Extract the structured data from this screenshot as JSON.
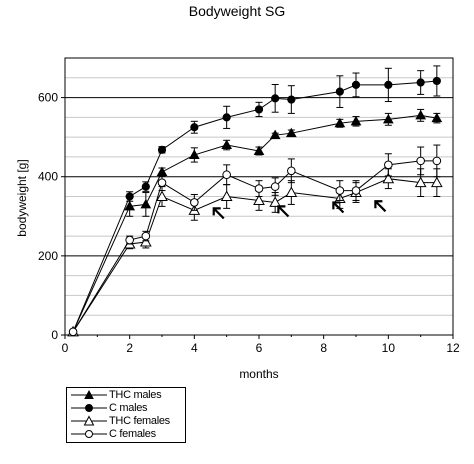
{
  "chart_data": {
    "type": "line",
    "title": "Bodyweight  SG",
    "xlabel": "months",
    "ylabel": "bodyweight [g]",
    "xlim": [
      0,
      12
    ],
    "ylim": [
      0,
      700
    ],
    "xticks": [
      0,
      2,
      4,
      6,
      8,
      10,
      12
    ],
    "yticks": [
      0,
      200,
      400,
      600
    ],
    "grid": "horizontal",
    "legend_position": "bottom-left",
    "series": [
      {
        "name": "THC males",
        "marker": "filled-triangle",
        "x": [
          0.25,
          2,
          2.5,
          3,
          4,
          5,
          6,
          6.5,
          7,
          8.5,
          9,
          10,
          11,
          11.5
        ],
        "y": [
          8,
          325,
          330,
          412,
          455,
          480,
          465,
          505,
          510,
          535,
          540,
          545,
          555,
          548
        ],
        "err": [
          0,
          25,
          30,
          10,
          18,
          12,
          10,
          5,
          8,
          10,
          12,
          15,
          15,
          12
        ]
      },
      {
        "name": "C males",
        "marker": "filled-circle",
        "x": [
          0.25,
          2,
          2.5,
          3,
          4,
          5,
          6,
          6.5,
          7,
          8.5,
          9,
          10,
          11,
          11.5
        ],
        "y": [
          8,
          350,
          375,
          468,
          525,
          550,
          570,
          598,
          595,
          615,
          632,
          632,
          638,
          642
        ],
        "err": [
          0,
          12,
          12,
          8,
          15,
          28,
          18,
          35,
          35,
          40,
          30,
          42,
          30,
          38
        ]
      },
      {
        "name": "THC females",
        "marker": "open-triangle",
        "x": [
          0.25,
          2,
          2.5,
          3,
          4,
          5,
          6,
          6.5,
          7,
          8.5,
          9,
          10,
          11,
          11.5
        ],
        "y": [
          8,
          230,
          235,
          350,
          315,
          350,
          340,
          335,
          360,
          345,
          360,
          395,
          385,
          385
        ],
        "err": [
          0,
          12,
          15,
          25,
          25,
          30,
          25,
          25,
          30,
          25,
          25,
          25,
          35,
          35
        ]
      },
      {
        "name": "C females",
        "marker": "open-circle",
        "x": [
          0.25,
          2,
          2.5,
          3,
          4,
          5,
          6,
          6.5,
          7,
          8.5,
          9,
          10,
          11,
          11.5
        ],
        "y": [
          8,
          240,
          250,
          385,
          335,
          405,
          370,
          375,
          415,
          365,
          365,
          430,
          440,
          440
        ],
        "err": [
          0,
          10,
          12,
          20,
          20,
          25,
          20,
          22,
          30,
          25,
          25,
          28,
          35,
          40
        ]
      }
    ],
    "annotations": [
      {
        "type": "arrow",
        "x": 4.6,
        "y": 320
      },
      {
        "type": "arrow",
        "x": 6.6,
        "y": 325
      },
      {
        "type": "arrow",
        "x": 8.3,
        "y": 335
      },
      {
        "type": "arrow",
        "x": 9.6,
        "y": 338
      }
    ]
  }
}
